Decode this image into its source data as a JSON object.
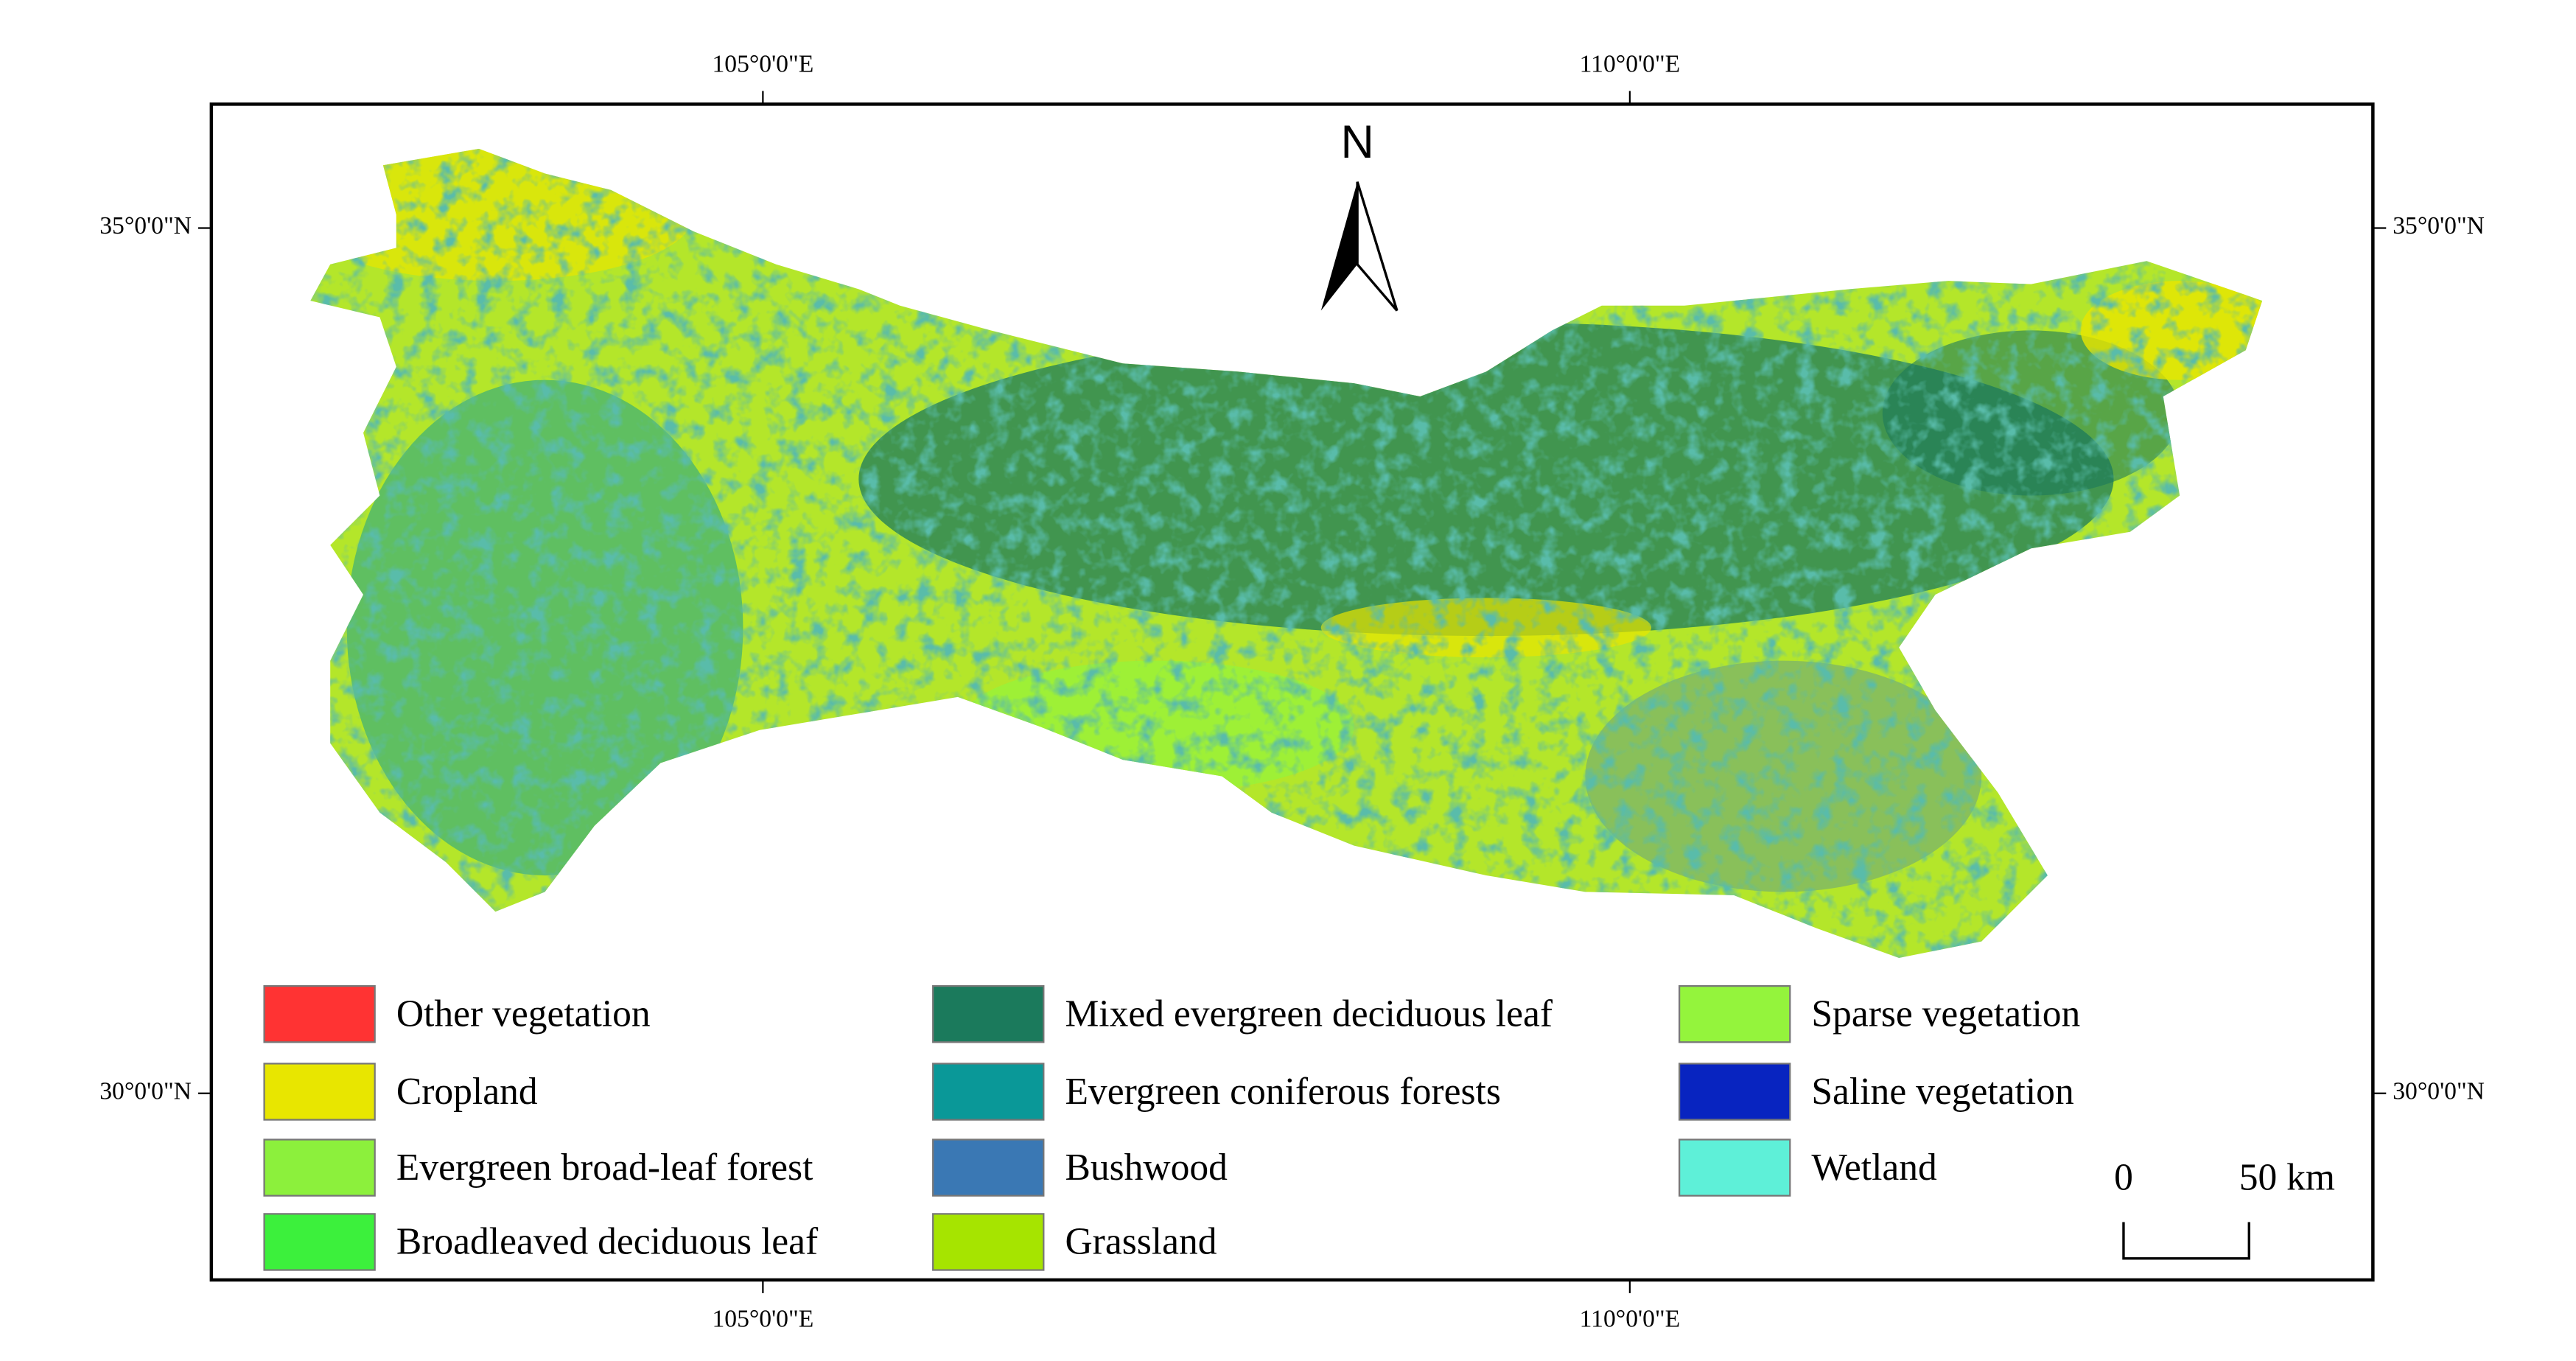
{
  "graticule": {
    "longitudes": [
      "105°0'0\"E",
      "110°0'0\"E"
    ],
    "latitudes": [
      "35°0'0\"N",
      "30°0'0\"N"
    ]
  },
  "north_arrow": {
    "label": "N"
  },
  "scale_bar": {
    "start": "0",
    "end": "50 km"
  },
  "legend": [
    {
      "label": "Other vegetation",
      "color": "#ff3333"
    },
    {
      "label": "Cropland",
      "color": "#e8e600"
    },
    {
      "label": "Evergreen broad-leaf forest",
      "color": "#8cf03c"
    },
    {
      "label": "Broadleaved deciduous leaf",
      "color": "#3cf03c"
    },
    {
      "label": "Mixed evergreen deciduous leaf",
      "color": "#1b7a5c"
    },
    {
      "label": "Evergreen coniferous forests",
      "color": "#0a9898"
    },
    {
      "label": "Bushwood",
      "color": "#3a78b4"
    },
    {
      "label": "Grassland",
      "color": "#a6e400"
    },
    {
      "label": "Sparse vegetation",
      "color": "#94f43c"
    },
    {
      "label": "Saline vegetation",
      "color": "#0824c0"
    },
    {
      "label": "Wetland",
      "color": "#5ef0d8"
    }
  ]
}
